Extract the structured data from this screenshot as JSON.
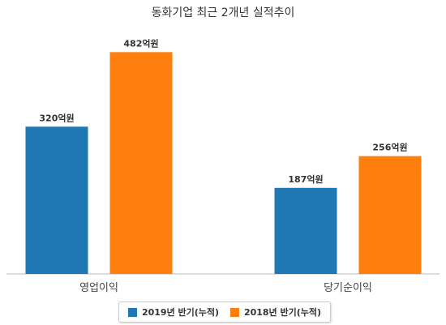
{
  "chart_data": {
    "type": "bar",
    "title": "동화기업 최근 2개년 실적추이",
    "xlabel": "",
    "ylabel": "",
    "categories": [
      "영업이익",
      "당기순이익"
    ],
    "series": [
      {
        "name": "2019년 반기(누적)",
        "color": "#1f77b4",
        "values": [
          320,
          187
        ],
        "labels": [
          "320억원",
          "187억원"
        ]
      },
      {
        "name": "2018년 반기(누적)",
        "color": "#ff7f0e",
        "values": [
          482,
          256
        ],
        "labels": [
          "482억원",
          "256억원"
        ]
      }
    ],
    "ylim": [
      0,
      560
    ],
    "grid": false,
    "legend_position": "bottom"
  }
}
